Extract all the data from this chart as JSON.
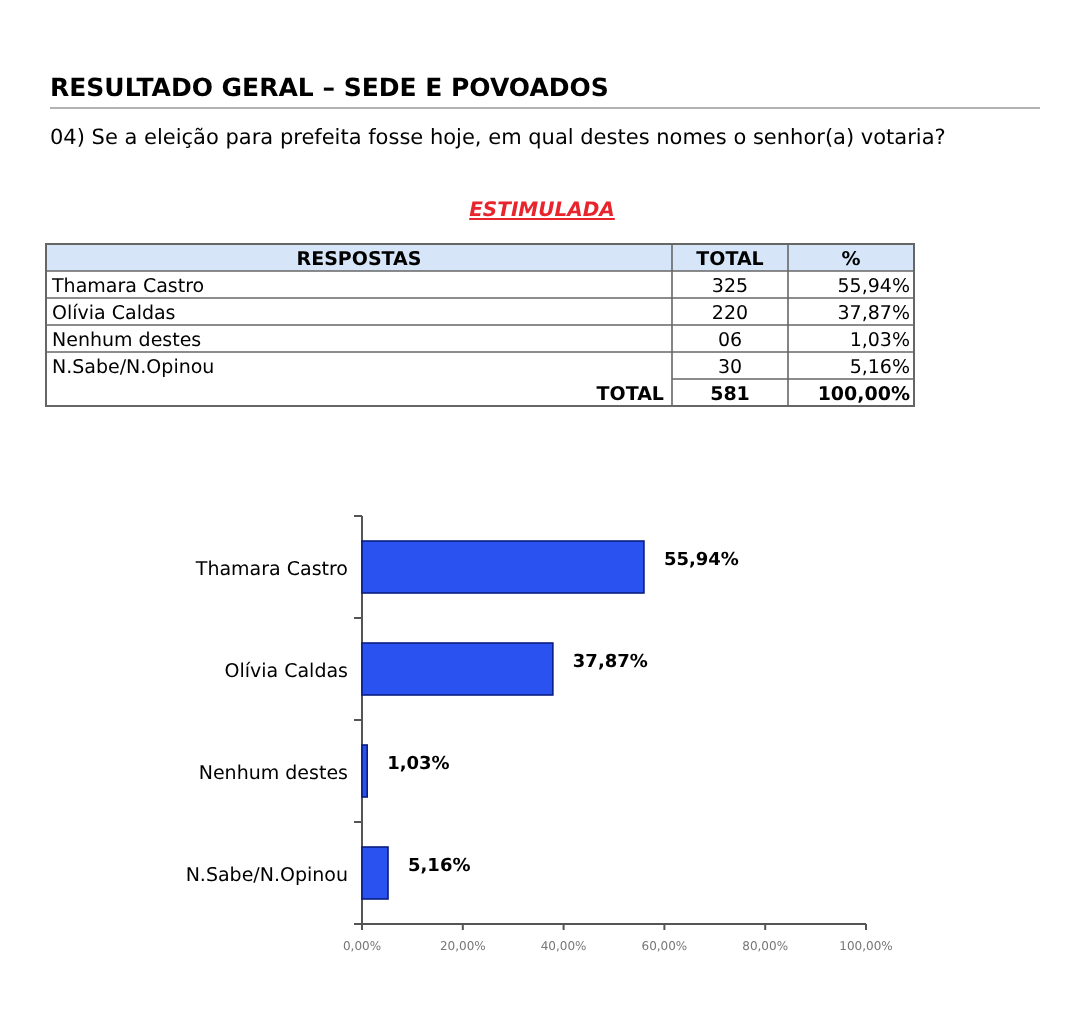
{
  "chart_data": [
    {
      "type": "other",
      "title": "RESULTADO GERAL – SEDE E POVOADOS",
      "subtitle": "04) Se a eleição para prefeita fosse hoje, em qual destes nomes  o senhor(a) votaria?",
      "annotations": [
        "ESTIMULADA",
        "RESPOSTAS",
        "TOTAL",
        "%",
        "Thamara Castro",
        "325",
        "55,94%",
        "Olívia Caldas",
        "220",
        "37,87%",
        "Nenhum destes",
        "06",
        "1,03%",
        "N.Sabe/N.Opinou",
        "30",
        "5,16%",
        "TOTAL",
        "581",
        "100,00%"
      ]
    },
    {
      "type": "bar",
      "orientation": "horizontal",
      "categories": [
        "Thamara Castro",
        "Olívia Caldas",
        "Nenhum destes",
        "N.Sabe/N.Opinou"
      ],
      "values": [
        55.94,
        37.87,
        1.03,
        5.16
      ],
      "color": "#2a52f0",
      "value_labels": [
        "55,94%",
        "37,87%",
        "1,03%",
        "5,16%"
      ],
      "xlim": [
        0,
        100
      ],
      "xticks": [
        {
          "value": 0,
          "label": "0,00%"
        },
        {
          "value": 20,
          "label": "20,00%"
        },
        {
          "value": 40,
          "label": "40,00%"
        },
        {
          "value": 60,
          "label": "60,00%"
        },
        {
          "value": 80,
          "label": "80,00%"
        },
        {
          "value": 100,
          "label": "100,00%"
        }
      ]
    }
  ]
}
